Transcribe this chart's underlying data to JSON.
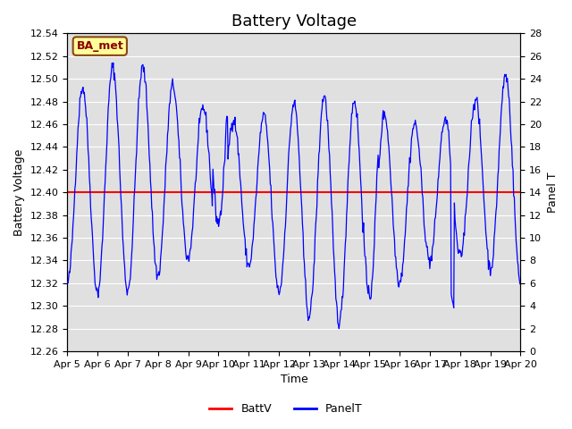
{
  "title": "Battery Voltage",
  "xlabel": "Time",
  "ylabel_left": "Battery Voltage",
  "ylabel_right": "Panel T",
  "ylim_left": [
    12.26,
    12.54
  ],
  "ylim_right": [
    0,
    28
  ],
  "yticks_left": [
    12.26,
    12.28,
    12.3,
    12.32,
    12.34,
    12.36,
    12.38,
    12.4,
    12.42,
    12.44,
    12.46,
    12.48,
    12.5,
    12.52,
    12.54
  ],
  "yticks_right": [
    0,
    2,
    4,
    6,
    8,
    10,
    12,
    14,
    16,
    18,
    20,
    22,
    24,
    26,
    28
  ],
  "xtick_labels": [
    "Apr 5",
    "Apr 6",
    "Apr 7",
    "Apr 8",
    "Apr 9",
    "Apr 10",
    "Apr 11",
    "Apr 12",
    "Apr 13",
    "Apr 14",
    "Apr 15",
    "Apr 16",
    "Apr 17",
    "Apr 18",
    "Apr 19",
    "Apr 20"
  ],
  "battv_value": 12.4,
  "battv_color": "#ff0000",
  "panelt_color": "#0000ff",
  "background_color": "#e0e0e0",
  "legend_label_battv": "BattV",
  "legend_label_panelt": "PanelT",
  "annotation_text": "BA_met",
  "annotation_bg": "#ffff99",
  "annotation_border": "#8B4513",
  "title_fontsize": 13,
  "axis_fontsize": 9,
  "tick_fontsize": 8
}
